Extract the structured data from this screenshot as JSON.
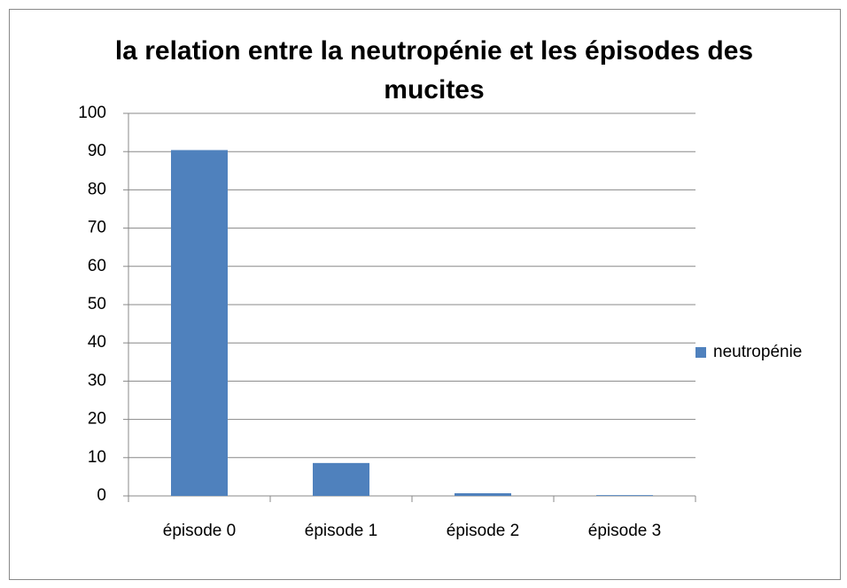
{
  "chart_data": {
    "type": "bar",
    "title": "la relation entre la neutropénie et les épisodes des mucites",
    "categories": [
      "épisode 0",
      "épisode 1",
      "épisode 2",
      "épisode 3"
    ],
    "series": [
      {
        "name": "neutropénie",
        "color": "#4f81bd",
        "values": [
          90.4,
          8.6,
          0.7,
          0.2
        ]
      }
    ],
    "ylim": [
      0,
      100
    ],
    "yticks": [
      0,
      10,
      20,
      30,
      40,
      50,
      60,
      70,
      80,
      90,
      100
    ],
    "grid": true,
    "legend": "right"
  }
}
